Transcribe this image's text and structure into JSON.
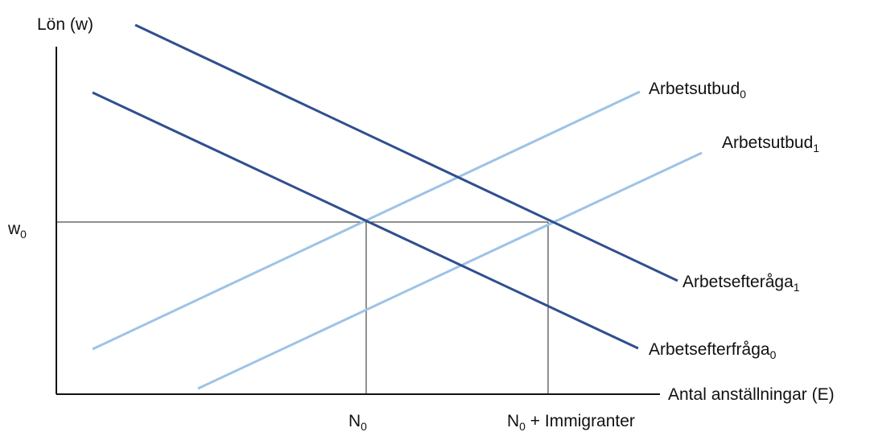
{
  "axes": {
    "y_label": "Lön (w)",
    "x_label": "Antal anställningar (E)"
  },
  "wage": {
    "base": "w",
    "sub": "0"
  },
  "quantities": {
    "n0": {
      "base": "N",
      "sub": "0"
    },
    "n1": {
      "base": "N",
      "sub": "0",
      "suffix": " + Immigranter"
    }
  },
  "curves": {
    "supply0": {
      "base": "Arbetsutbud",
      "sub": "0"
    },
    "supply1": {
      "base": "Arbetsutbud",
      "sub": "1"
    },
    "demand1": {
      "base": "Arbetsefteråga",
      "sub": "1"
    },
    "demand0": {
      "base": "Arbetsefterfråga",
      "sub": "0"
    }
  },
  "colors": {
    "demand": "#2f4f8f",
    "supply": "#9ec3e6",
    "axis": "#111111",
    "guide": "#222222"
  }
}
